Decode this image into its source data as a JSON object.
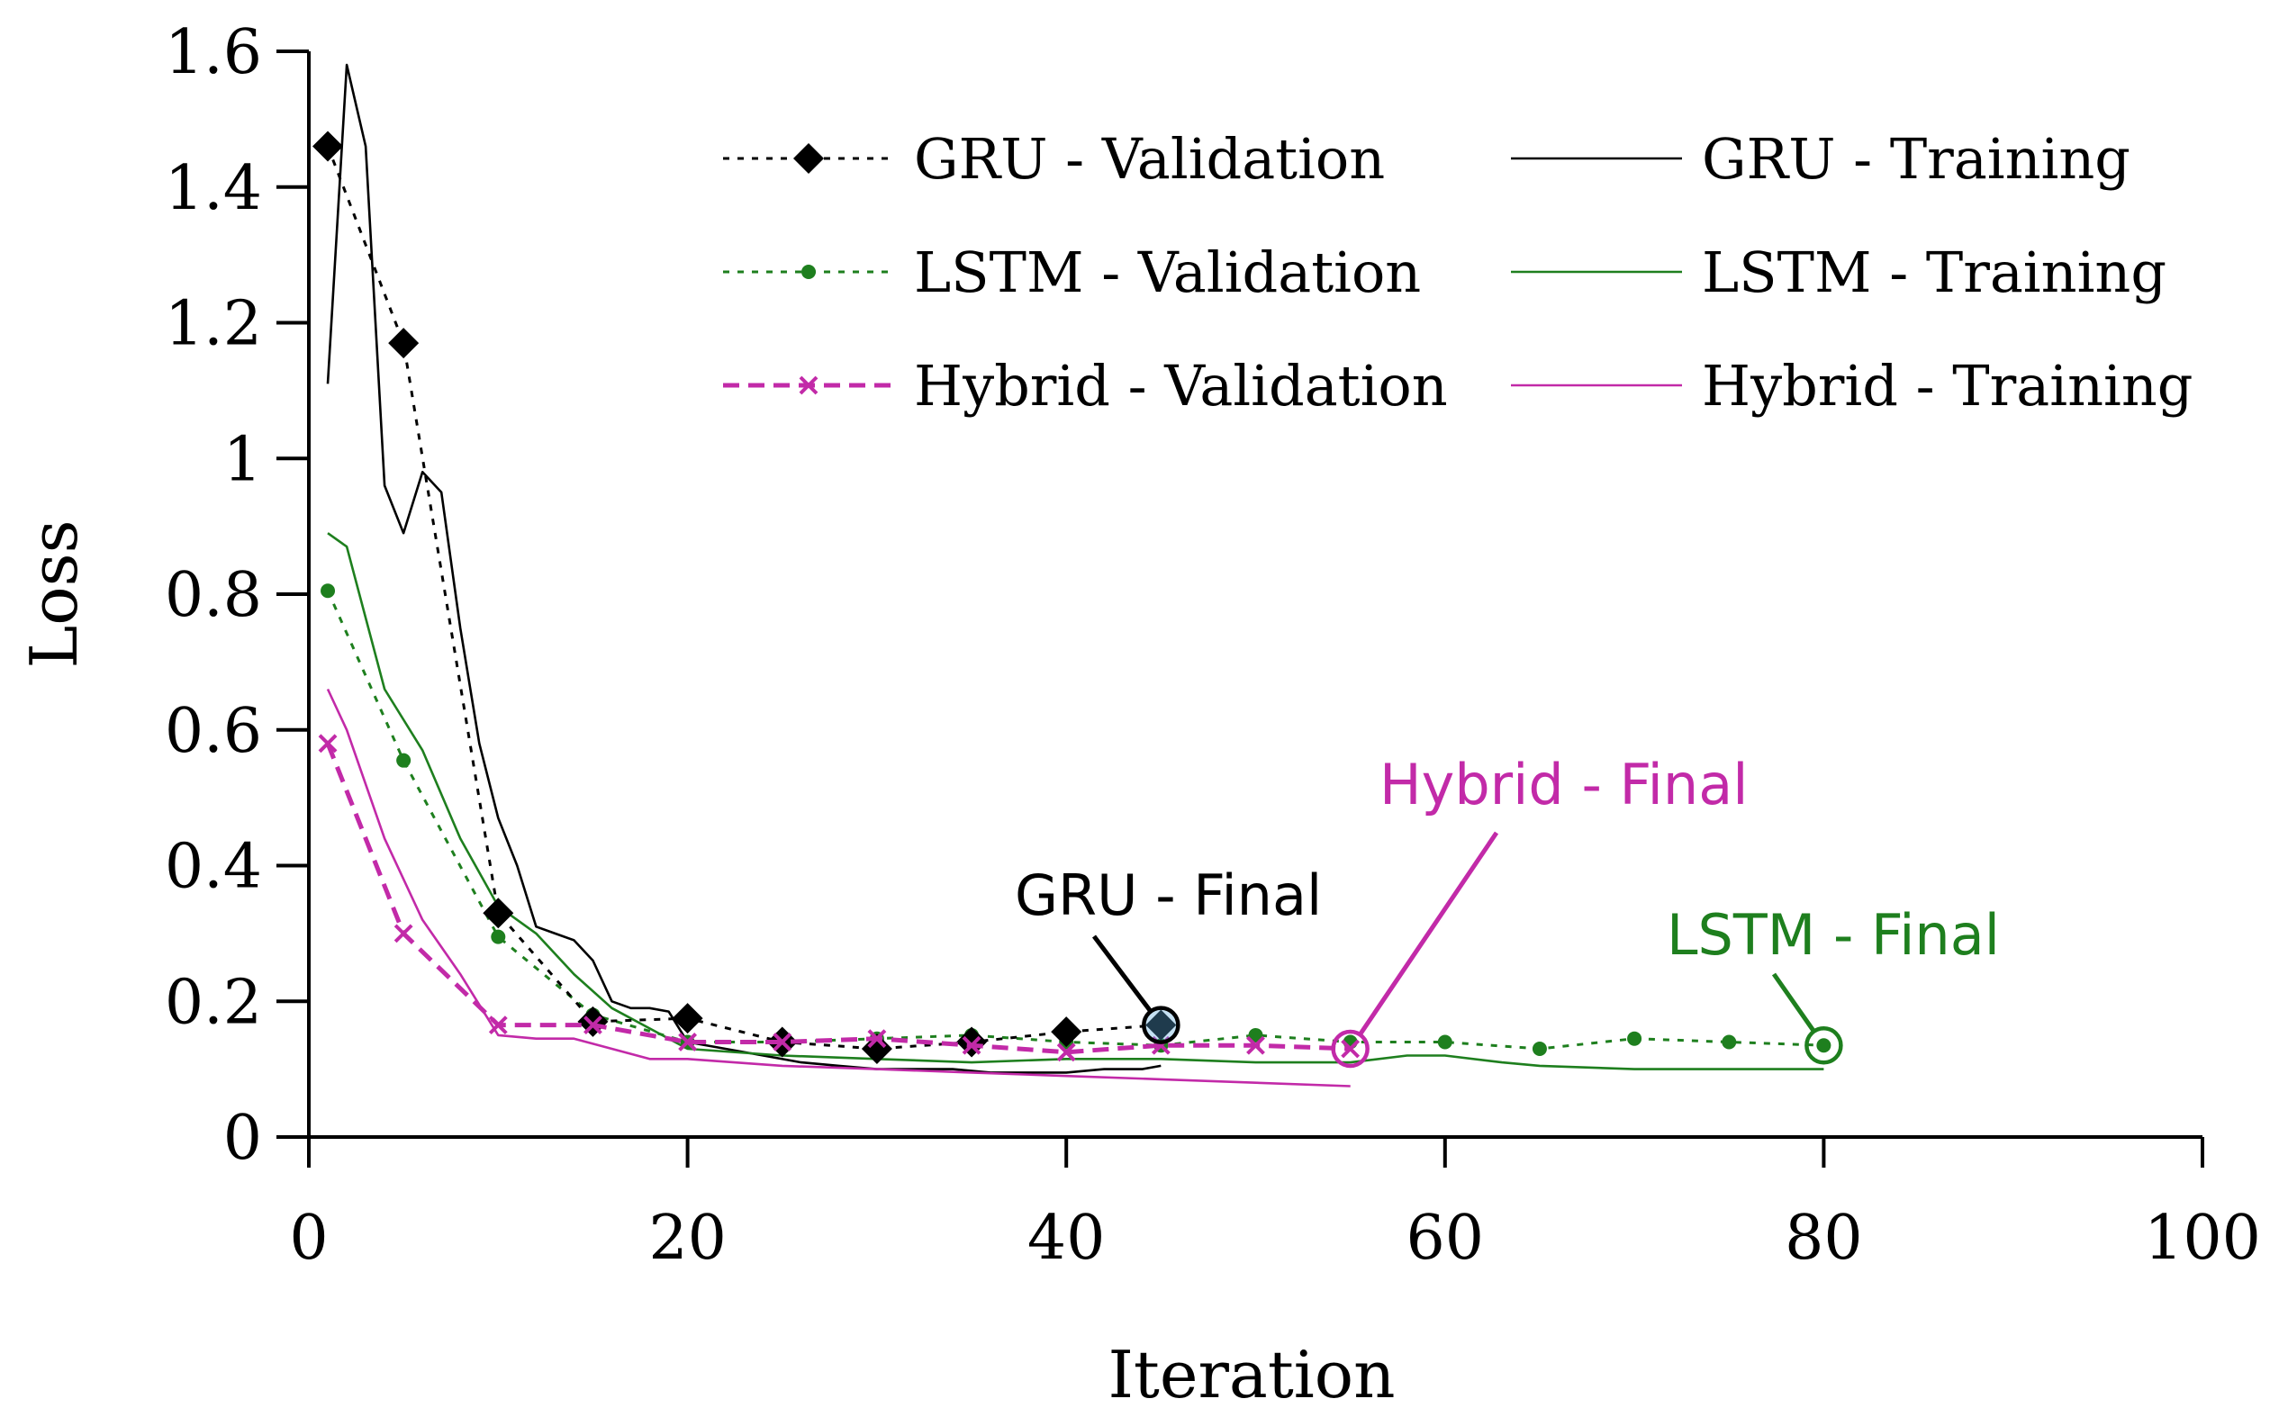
{
  "chart_data": {
    "type": "line",
    "xlabel": "Iteration",
    "ylabel": "Loss",
    "xlim": [
      0,
      100
    ],
    "ylim": [
      0,
      1.6
    ],
    "xticks": [
      0,
      20,
      40,
      60,
      80,
      100
    ],
    "yticks": [
      0,
      0.2,
      0.4,
      0.6,
      0.8,
      1,
      1.2,
      1.4,
      1.6
    ],
    "xtick_labels": [
      "0",
      "20",
      "40",
      "60",
      "80",
      "100"
    ],
    "ytick_labels": [
      "0",
      "0.2",
      "0.4",
      "0.6",
      "0.8",
      "1",
      "1.2",
      "1.4",
      "1.6"
    ],
    "grid": false,
    "legend_position": "top-right",
    "series": [
      {
        "name": "GRU - Validation",
        "color": "#000000",
        "style": "dotted",
        "marker": "diamond",
        "x": [
          1,
          5,
          10,
          15,
          20,
          25,
          30,
          35,
          40,
          45
        ],
        "y": [
          1.46,
          1.17,
          0.33,
          0.17,
          0.175,
          0.14,
          0.13,
          0.14,
          0.155,
          0.165
        ]
      },
      {
        "name": "LSTM - Validation",
        "color": "#1e7f1e",
        "style": "dotted",
        "marker": "dot",
        "x": [
          1,
          5,
          10,
          15,
          20,
          25,
          30,
          35,
          40,
          45,
          50,
          55,
          60,
          65,
          70,
          75,
          80
        ],
        "y": [
          0.805,
          0.555,
          0.295,
          0.18,
          0.14,
          0.14,
          0.145,
          0.15,
          0.14,
          0.135,
          0.15,
          0.14,
          0.14,
          0.13,
          0.145,
          0.14,
          0.135
        ]
      },
      {
        "name": "Hybrid - Validation",
        "color": "#c22aa8",
        "style": "dashed",
        "marker": "x",
        "x": [
          1,
          5,
          10,
          15,
          20,
          25,
          30,
          35,
          40,
          45,
          50,
          55
        ],
        "y": [
          0.58,
          0.3,
          0.165,
          0.165,
          0.14,
          0.14,
          0.145,
          0.135,
          0.125,
          0.135,
          0.135,
          0.13
        ]
      },
      {
        "name": "GRU - Training",
        "color": "#000000",
        "style": "solid",
        "marker": "none",
        "x": [
          1,
          2,
          3,
          4,
          5,
          6,
          7,
          8,
          9,
          10,
          11,
          12,
          13,
          14,
          15,
          16,
          17,
          18,
          19,
          20,
          22,
          24,
          26,
          28,
          30,
          32,
          34,
          36,
          38,
          40,
          42,
          44,
          45
        ],
        "y": [
          1.11,
          1.58,
          1.46,
          0.96,
          0.89,
          0.98,
          0.95,
          0.75,
          0.58,
          0.47,
          0.4,
          0.31,
          0.3,
          0.29,
          0.26,
          0.2,
          0.19,
          0.19,
          0.185,
          0.14,
          0.13,
          0.12,
          0.11,
          0.105,
          0.1,
          0.1,
          0.1,
          0.095,
          0.095,
          0.095,
          0.1,
          0.1,
          0.105
        ]
      },
      {
        "name": "LSTM - Training",
        "color": "#1e7f1e",
        "style": "solid",
        "marker": "none",
        "x": [
          1,
          2,
          4,
          6,
          8,
          10,
          12,
          14,
          16,
          18,
          20,
          25,
          30,
          35,
          40,
          45,
          50,
          55,
          58,
          60,
          63,
          65,
          70,
          75,
          80
        ],
        "y": [
          0.89,
          0.87,
          0.66,
          0.57,
          0.44,
          0.34,
          0.3,
          0.24,
          0.19,
          0.16,
          0.13,
          0.12,
          0.115,
          0.11,
          0.115,
          0.115,
          0.11,
          0.11,
          0.12,
          0.12,
          0.11,
          0.105,
          0.1,
          0.1,
          0.1
        ]
      },
      {
        "name": "Hybrid - Training",
        "color": "#c22aa8",
        "style": "solid",
        "marker": "none",
        "x": [
          1,
          2,
          4,
          6,
          8,
          10,
          12,
          14,
          16,
          18,
          20,
          25,
          30,
          35,
          40,
          45,
          50,
          55
        ],
        "y": [
          0.66,
          0.6,
          0.44,
          0.32,
          0.24,
          0.15,
          0.145,
          0.145,
          0.13,
          0.115,
          0.115,
          0.105,
          0.1,
          0.095,
          0.09,
          0.085,
          0.08,
          0.075
        ]
      }
    ],
    "annotations": [
      {
        "text": "GRU - Final",
        "color": "#000000",
        "x": 45,
        "y": 0.165
      },
      {
        "text": "Hybrid - Final",
        "color": "#c22aa8",
        "x": 55,
        "y": 0.13
      },
      {
        "text": "LSTM - Final",
        "color": "#1e7f1e",
        "x": 80,
        "y": 0.135
      }
    ]
  }
}
